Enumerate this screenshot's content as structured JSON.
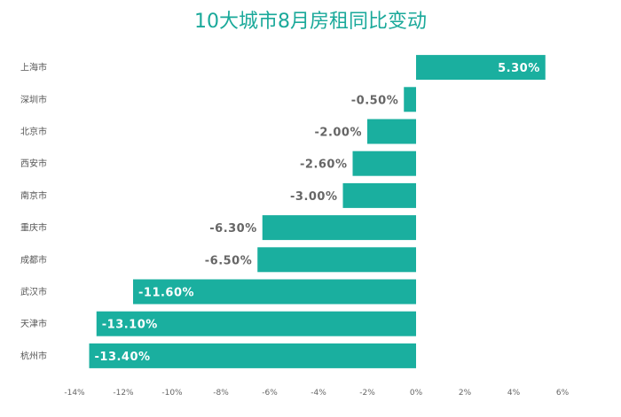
{
  "chart_data": {
    "type": "bar",
    "orientation": "horizontal",
    "title": "10大城市8月房租同比变动",
    "categories": [
      "上海市",
      "深圳市",
      "北京市",
      "西安市",
      "南京市",
      "重庆市",
      "成都市",
      "武汉市",
      "天津市",
      "杭州市"
    ],
    "values": [
      5.3,
      -0.5,
      -2.0,
      -2.6,
      -3.0,
      -6.3,
      -6.5,
      -11.6,
      -13.1,
      -13.4
    ],
    "value_labels": [
      "5.30%",
      "-0.50%",
      "-2.00%",
      "-2.60%",
      "-3.00%",
      "-6.30%",
      "-6.50%",
      "-11.60%",
      "-13.10%",
      "-13.40%"
    ],
    "xticks": [
      -14,
      -12,
      -10,
      -8,
      -6,
      -4,
      -2,
      0,
      2,
      4,
      6
    ],
    "xtick_labels": [
      "-14%",
      "-12%",
      "-10%",
      "-8%",
      "-6%",
      "-4%",
      "-2%",
      "0%",
      "2%",
      "4%",
      "6%"
    ],
    "xlim": [
      -14,
      6
    ],
    "bar_color": "#1aaf9f",
    "label_inside_color": "#ffffff",
    "label_outside_color": "#666666",
    "grid": false
  }
}
